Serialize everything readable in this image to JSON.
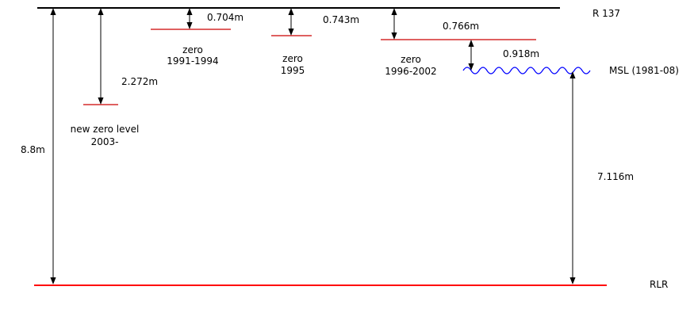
{
  "colors": {
    "reference_line": "#000000",
    "zero_level": "#cc0000",
    "rlr_line": "#ff0000",
    "msl_wave": "#0000ff",
    "arrow": "#000000"
  },
  "labels": {
    "r137": "R 137",
    "rlr": "RLR",
    "msl": "MSL (1981-08)",
    "total_height": "8.8m",
    "rlr_to_msl": "7.116m",
    "zero_2003_offset": "2.272m",
    "zero_1991_offset": "0.704m",
    "zero_1995_offset": "0.743m",
    "zero_1996_offset": "0.766m",
    "msl_offset": "0.918m",
    "zero_2003_line1": "new zero level",
    "zero_2003_line2": "2003-",
    "zero_1991_line1": "zero",
    "zero_1991_line2": "1991-1994",
    "zero_1995_line1": "zero",
    "zero_1995_line2": "1995",
    "zero_1996_line1": "zero",
    "zero_1996_line2": "1996-2002"
  }
}
